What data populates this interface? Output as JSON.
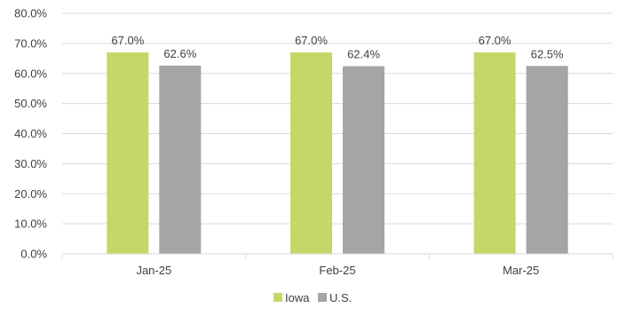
{
  "chart_data": {
    "type": "bar",
    "title": "",
    "xlabel": "",
    "ylabel": "",
    "categories": [
      "Jan-25",
      "Feb-25",
      "Mar-25"
    ],
    "series": [
      {
        "name": "Iowa",
        "values": [
          67.0,
          67.0,
          67.0
        ],
        "labels": [
          "67.0%",
          "67.0%",
          "67.0%"
        ],
        "color": "#c5d867"
      },
      {
        "name": "U.S.",
        "values": [
          62.6,
          62.4,
          62.5
        ],
        "labels": [
          "62.6%",
          "62.4%",
          "62.5%"
        ],
        "color": "#a5a5a5"
      }
    ],
    "ylim": [
      0,
      80
    ],
    "yticks": [
      0,
      10,
      20,
      30,
      40,
      50,
      60,
      70,
      80
    ],
    "ytick_labels": [
      "0.0%",
      "10.0%",
      "20.0%",
      "30.0%",
      "40.0%",
      "50.0%",
      "60.0%",
      "70.0%",
      "80.0%"
    ],
    "grid": true,
    "legend_position": "bottom",
    "gridline_color": "#d9d9d9"
  }
}
